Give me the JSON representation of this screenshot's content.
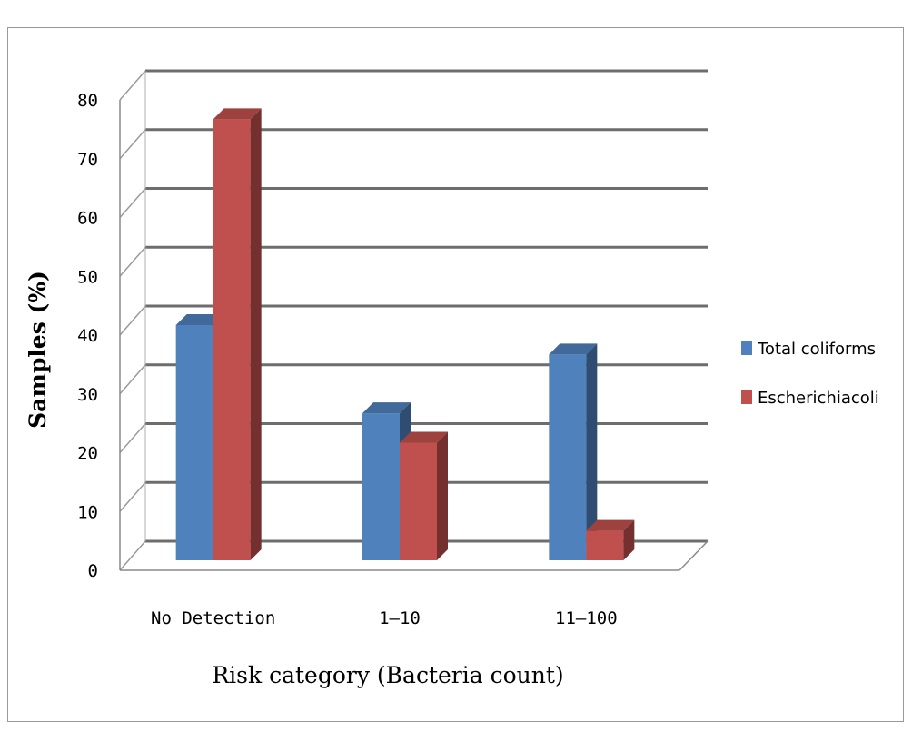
{
  "chart_data": {
    "type": "bar",
    "title": "",
    "xlabel": "Risk category (Bacteria count)",
    "ylabel": "Samples (%)",
    "categories": [
      "No Detection",
      "1–10",
      "11–100"
    ],
    "ylim": [
      0,
      80
    ],
    "yticks": [
      0,
      10,
      20,
      30,
      40,
      50,
      60,
      70,
      80
    ],
    "grid": true,
    "legend_position": "right",
    "series": [
      {
        "name": "Total coliforms",
        "values": [
          40,
          25,
          35
        ],
        "color": "#4f81bd"
      },
      {
        "name": "Escherichiacoli",
        "values": [
          75,
          20,
          5
        ],
        "color": "#c0504d"
      }
    ]
  }
}
